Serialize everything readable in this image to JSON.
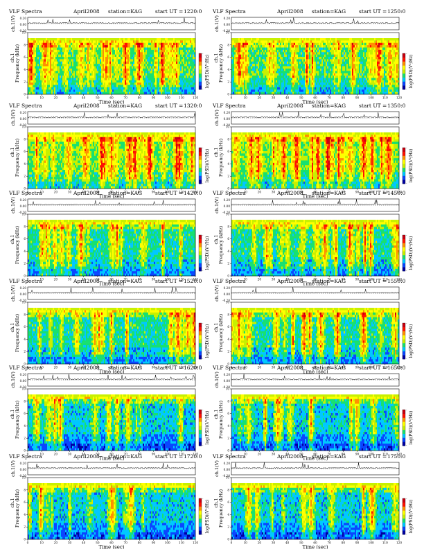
{
  "page": {
    "header_left": "VLF Spectra",
    "date": "April2008",
    "station": "station=KAG",
    "start_prefix": "start  UT  ="
  },
  "amplitude_axis": {
    "label": "ch.1(V)",
    "ticks": [
      "0.20",
      "0.00",
      "-0.20"
    ]
  },
  "spectrogram_axis": {
    "ylabel_channel": "ch.1",
    "ylabel": "Frequency (kHz)",
    "yticks": [
      0,
      2,
      4,
      6,
      8,
      10
    ],
    "ylim": [
      0,
      10
    ],
    "xlabel": "Time (sec)",
    "xticks": [
      0,
      10,
      20,
      30,
      40,
      50,
      60,
      70,
      80,
      90,
      100,
      110,
      120
    ],
    "xlim": [
      0,
      120
    ]
  },
  "colorbar": {
    "label": "log(PSD)(V²/Hz)",
    "colors": [
      "#0000a0",
      "#0a46ff",
      "#00c8ff",
      "#18e070",
      "#c8f000",
      "#ffff00",
      "#ff9000",
      "#ff1000",
      "#c80010"
    ],
    "top_tick": "-",
    "bottom_tick": "-"
  },
  "panels": [
    {
      "start_ut": "1220:0",
      "intensity": "high"
    },
    {
      "start_ut": "1250:0",
      "intensity": "high"
    },
    {
      "start_ut": "1320:0",
      "intensity": "veryhigh"
    },
    {
      "start_ut": "1350:0",
      "intensity": "veryhigh"
    },
    {
      "start_ut": "1420:0",
      "intensity": "medium"
    },
    {
      "start_ut": "1450:0",
      "intensity": "medium"
    },
    {
      "start_ut": "1520:0",
      "intensity": "medium"
    },
    {
      "start_ut": "1550:0",
      "intensity": "medium"
    },
    {
      "start_ut": "1620:0",
      "intensity": "low"
    },
    {
      "start_ut": "1650:0",
      "intensity": "low"
    },
    {
      "start_ut": "1720:0",
      "intensity": "low"
    },
    {
      "start_ut": "1750:0",
      "intensity": "low"
    }
  ],
  "chart_data": {
    "type": "heatmap",
    "x_axis": "Time (sec)",
    "y_axis": "Frequency (kHz)",
    "x_range": [
      0,
      120
    ],
    "y_range": [
      0,
      10
    ],
    "color_scale_label": "log(PSD)(V²/Hz)",
    "panel_starts_ut": [
      "1220:0",
      "1250:0",
      "1320:0",
      "1350:0",
      "1420:0",
      "1450:0",
      "1520:0",
      "1550:0",
      "1620:0",
      "1650:0",
      "1720:0",
      "1750:0"
    ],
    "grid": false,
    "layout": "6 rows x 2 columns"
  }
}
